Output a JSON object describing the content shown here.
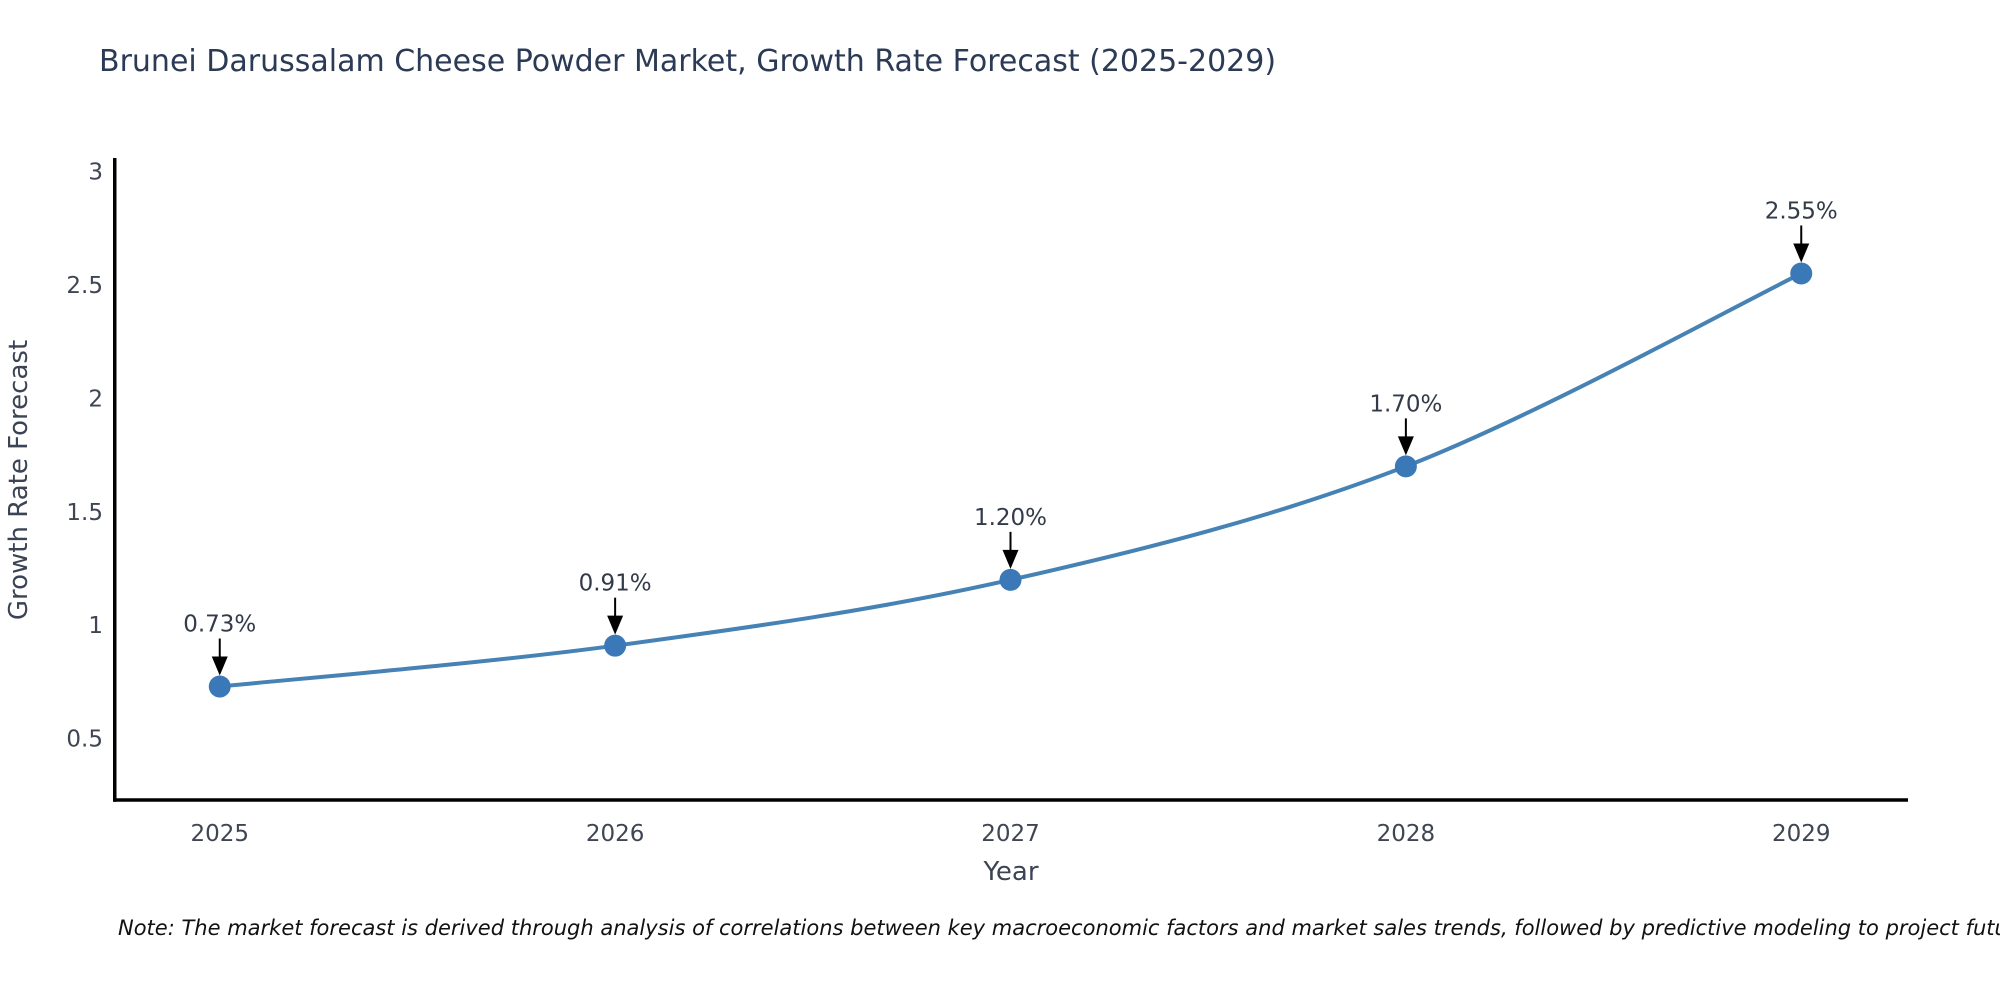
{
  "title": "Brunei Darussalam Cheese Powder Market, Growth Rate Forecast (2025-2029)",
  "note": "Note: The market forecast is derived through analysis of correlations between key macroeconomic factors and market sales trends, followed by predictive modeling to project future sales",
  "chart_data": {
    "type": "line",
    "title": "Brunei Darussalam Cheese Powder Market, Growth Rate Forecast (2025-2029)",
    "x": [
      2025,
      2026,
      2027,
      2028,
      2029
    ],
    "xtick_labels": [
      "2025",
      "2026",
      "2027",
      "2028",
      "2029"
    ],
    "values": [
      0.73,
      0.91,
      1.2,
      1.7,
      2.55
    ],
    "point_labels": [
      "0.73%",
      "0.91%",
      "1.20%",
      "1.70%",
      "2.55%"
    ],
    "xlabel": "Year",
    "ylabel": "Growth Rate Forecast",
    "xlim": [
      2024.73,
      2029.27
    ],
    "ylim": [
      0.23,
      3.05
    ],
    "yticks": [
      0.5,
      1,
      1.5,
      2,
      2.5,
      3
    ],
    "ytick_labels": [
      "0.5",
      "1",
      "1.5",
      "2",
      "2.5",
      "3"
    ],
    "grid": false,
    "legend": false,
    "line_color": "#4682b4",
    "marker_color": "#3a78b8",
    "axis_color": "#000000",
    "annotation_color": "#000000",
    "tick_color": "#3f4553",
    "title_color": "#2b3a55"
  }
}
